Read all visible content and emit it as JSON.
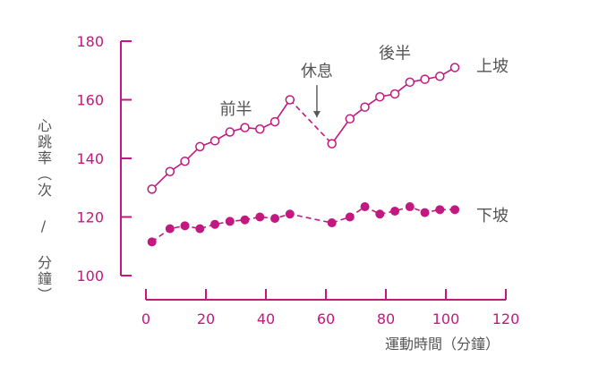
{
  "chart_data": {
    "type": "line",
    "title": "",
    "xlabel": "運動時間（分鐘）",
    "ylabel": "心跳率（次 / 分鐘）",
    "xlim": [
      0,
      120
    ],
    "ylim": [
      100,
      180
    ],
    "xticks": [
      0,
      20,
      40,
      60,
      80,
      100,
      120
    ],
    "yticks": [
      100,
      120,
      140,
      160,
      180
    ],
    "grid": false,
    "colors": {
      "axis": "#c2187f",
      "tick_label": "#c2187f",
      "text": "#555555",
      "series": "#c2187f",
      "annotation": "#555555"
    },
    "annotations": [
      {
        "id": "first-half",
        "text": "前半",
        "x": 30,
        "y": 155
      },
      {
        "id": "rest",
        "text": "休息",
        "x": 57,
        "y": 168
      },
      {
        "id": "second-half",
        "text": "後半",
        "x": 83,
        "y": 174
      }
    ],
    "arrow": {
      "x": 57,
      "y_start": 165,
      "y_end": 154
    },
    "series": [
      {
        "name": "上坡",
        "marker": "open-circle",
        "points": [
          {
            "x": 2,
            "y": 129.5
          },
          {
            "x": 8,
            "y": 135.5
          },
          {
            "x": 13,
            "y": 139
          },
          {
            "x": 18,
            "y": 144
          },
          {
            "x": 23,
            "y": 146
          },
          {
            "x": 28,
            "y": 149
          },
          {
            "x": 33,
            "y": 150.5
          },
          {
            "x": 38,
            "y": 150
          },
          {
            "x": 43,
            "y": 152.5
          },
          {
            "x": 48,
            "y": 160
          },
          {
            "x": 62,
            "y": 145
          },
          {
            "x": 68,
            "y": 153.5
          },
          {
            "x": 73,
            "y": 157.5
          },
          {
            "x": 78,
            "y": 161
          },
          {
            "x": 83,
            "y": 162
          },
          {
            "x": 88,
            "y": 166
          },
          {
            "x": 93,
            "y": 167
          },
          {
            "x": 98,
            "y": 168
          },
          {
            "x": 103,
            "y": 171
          }
        ],
        "segments": [
          {
            "from": 0,
            "to": 9,
            "style": "solid"
          },
          {
            "from": 9,
            "to": 10,
            "style": "dashed"
          },
          {
            "from": 10,
            "to": 18,
            "style": "solid"
          }
        ]
      },
      {
        "name": "下坡",
        "marker": "filled-circle",
        "points": [
          {
            "x": 2,
            "y": 111.5
          },
          {
            "x": 8,
            "y": 116
          },
          {
            "x": 13,
            "y": 117
          },
          {
            "x": 18,
            "y": 116
          },
          {
            "x": 23,
            "y": 117.5
          },
          {
            "x": 28,
            "y": 118.5
          },
          {
            "x": 33,
            "y": 119
          },
          {
            "x": 38,
            "y": 120
          },
          {
            "x": 43,
            "y": 119.5
          },
          {
            "x": 48,
            "y": 121
          },
          {
            "x": 62,
            "y": 118
          },
          {
            "x": 68,
            "y": 120
          },
          {
            "x": 73,
            "y": 123.5
          },
          {
            "x": 78,
            "y": 121
          },
          {
            "x": 83,
            "y": 122
          },
          {
            "x": 88,
            "y": 123.5
          },
          {
            "x": 93,
            "y": 121.5
          },
          {
            "x": 98,
            "y": 122.5
          },
          {
            "x": 103,
            "y": 122.5
          }
        ],
        "segments": [
          {
            "from": 0,
            "to": 18,
            "style": "dashed"
          }
        ]
      }
    ]
  }
}
